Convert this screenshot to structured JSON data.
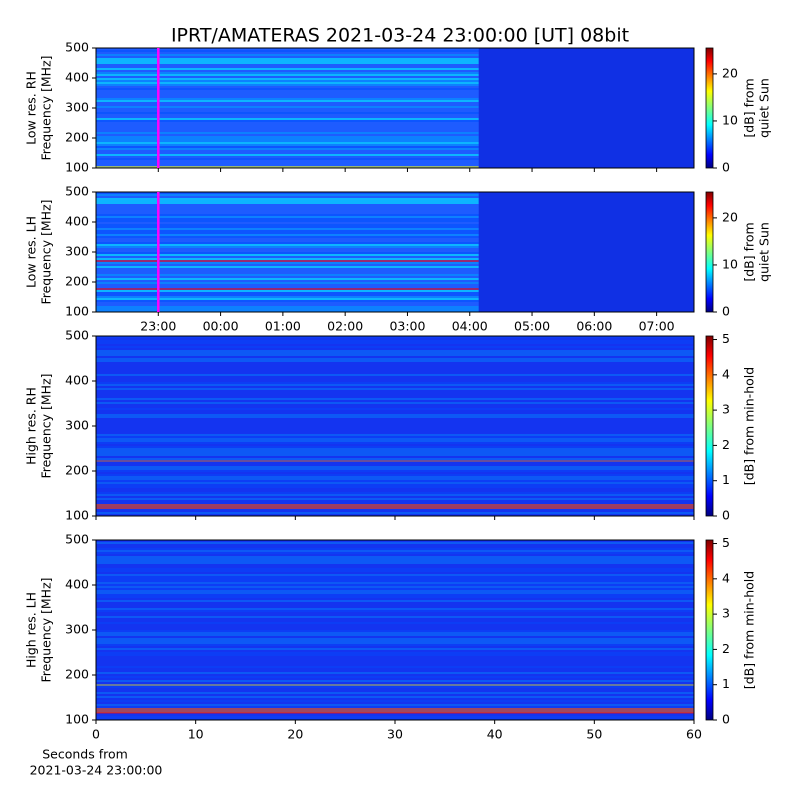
{
  "chart_data": [
    {
      "type": "heatmap",
      "title": "IPRT/AMATERAS 2021-03-24 23:00:00 [UT]   08bit",
      "ylabel": [
        "Low res. RH",
        "Frequency [MHz]"
      ],
      "xlim": [
        -1,
        8.6
      ],
      "ylim": [
        100,
        500
      ],
      "yticks": [
        100,
        200,
        300,
        400,
        500
      ],
      "marker_x": 0,
      "marker_color": "#ff00ff",
      "colormap": "jet",
      "clim": [
        0,
        25.5
      ],
      "cticks": [
        0,
        10,
        20
      ],
      "clabel": [
        "[dB] from",
        "quiet Sun"
      ]
    },
    {
      "type": "heatmap",
      "ylabel": [
        "Low res. LH",
        "Frequency [MHz]"
      ],
      "xlim": [
        -1,
        8.6
      ],
      "xticks": [
        {
          "value": 0,
          "label": "23:00"
        },
        {
          "value": 1,
          "label": "00:00"
        },
        {
          "value": 2,
          "label": "01:00"
        },
        {
          "value": 3,
          "label": "02:00"
        },
        {
          "value": 4,
          "label": "03:00"
        },
        {
          "value": 5,
          "label": "04:00"
        },
        {
          "value": 6,
          "label": "05:00"
        },
        {
          "value": 7,
          "label": "06:00"
        },
        {
          "value": 8,
          "label": "07:00"
        }
      ],
      "ylim": [
        100,
        500
      ],
      "yticks": [
        100,
        200,
        300,
        400,
        500
      ],
      "marker_x": 0,
      "marker_color": "#ff00ff",
      "colormap": "jet",
      "clim": [
        0,
        25.5
      ],
      "cticks": [
        0,
        10,
        20
      ],
      "clabel": [
        "[dB] from",
        "quiet Sun"
      ]
    },
    {
      "type": "heatmap",
      "ylabel": [
        "High res. RH",
        "Frequency [MHz]"
      ],
      "xlim": [
        0,
        60
      ],
      "ylim": [
        100,
        500
      ],
      "yticks": [
        100,
        200,
        300,
        400,
        500
      ],
      "colormap": "jet",
      "clim": [
        0,
        5.1
      ],
      "cticks": [
        0,
        1,
        2,
        3,
        4,
        5
      ],
      "clabel": [
        "[dB] from min-hold"
      ]
    },
    {
      "type": "heatmap",
      "ylabel": [
        "High res. LH",
        "Frequency [MHz]"
      ],
      "xlabel": [
        "Seconds from",
        "2021-03-24 23:00:00"
      ],
      "xlim": [
        0,
        60
      ],
      "xticks": [
        0,
        10,
        20,
        30,
        40,
        50,
        60
      ],
      "ylim": [
        100,
        500
      ],
      "yticks": [
        100,
        200,
        300,
        400,
        500
      ],
      "colormap": "jet",
      "clim": [
        0,
        5.1
      ],
      "cticks": [
        0,
        1,
        2,
        3,
        4,
        5
      ],
      "clabel": [
        "[dB] from min-hold"
      ]
    }
  ]
}
